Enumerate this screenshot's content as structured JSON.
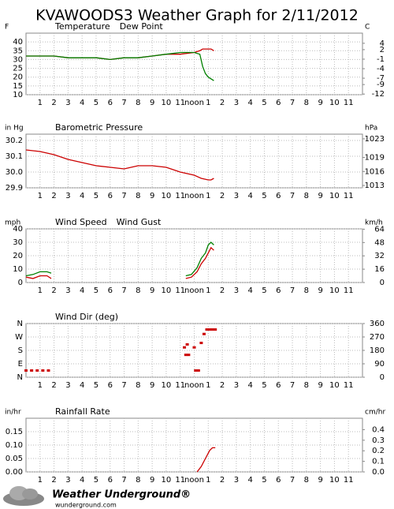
{
  "title": "KVAWOODS3 Weather Graph for 2/11/2012",
  "footer": {
    "brand": "Weather Underground®",
    "url": "wunderground.com"
  },
  "chart_data": [
    {
      "type": "line",
      "ylabel": "F",
      "y2label": "C",
      "x": [
        0,
        1,
        2,
        3,
        4,
        5,
        6,
        7,
        8,
        9,
        10,
        11,
        12,
        12.4,
        12.6,
        12.8,
        13,
        13.2,
        13.4
      ],
      "xlim": [
        0,
        24
      ],
      "xticks": [
        1,
        2,
        3,
        4,
        5,
        6,
        7,
        8,
        9,
        10,
        11,
        {
          "value": 12,
          "label": "noon"
        },
        {
          "value": 13,
          "label": "1"
        },
        {
          "value": 14,
          "label": "2"
        },
        {
          "value": 15,
          "label": "3"
        },
        {
          "value": 16,
          "label": "4"
        },
        {
          "value": 17,
          "label": "5"
        },
        {
          "value": 18,
          "label": "6"
        },
        {
          "value": 19,
          "label": "7"
        },
        {
          "value": 20,
          "label": "8"
        },
        {
          "value": 21,
          "label": "9"
        },
        {
          "value": 22,
          "label": "10"
        },
        {
          "value": 23,
          "label": "11"
        }
      ],
      "ylim": [
        10,
        45
      ],
      "yticks": [
        10,
        15,
        20,
        25,
        30,
        35,
        40
      ],
      "y2lim": [
        -12.2,
        7.2
      ],
      "y2ticks": [
        -12,
        -9,
        -7,
        -4,
        -1,
        2,
        4
      ],
      "series": [
        {
          "name": "Temperature",
          "color": "#cc0000",
          "values": [
            32,
            32,
            32,
            31,
            31,
            31,
            30,
            31,
            31,
            32,
            33,
            33,
            34,
            35,
            36,
            36,
            36,
            36,
            35
          ]
        },
        {
          "name": "Dew Point",
          "color": "#008000",
          "values": [
            32,
            32,
            32,
            31,
            31,
            31,
            30,
            31,
            31,
            32,
            33,
            34,
            34,
            33,
            26,
            22,
            20,
            19,
            18
          ]
        }
      ]
    },
    {
      "type": "line",
      "ylabel": "in Hg",
      "y2label": "hPa",
      "x": [
        0,
        1,
        2,
        3,
        4,
        5,
        6,
        7,
        8,
        9,
        10,
        11,
        12,
        12.5,
        13,
        13.2,
        13.4
      ],
      "xlim": [
        0,
        24
      ],
      "xticks": [
        1,
        2,
        3,
        4,
        5,
        6,
        7,
        8,
        9,
        10,
        11,
        {
          "value": 12,
          "label": "noon"
        },
        {
          "value": 13,
          "label": "1"
        },
        {
          "value": 14,
          "label": "2"
        },
        {
          "value": 15,
          "label": "3"
        },
        {
          "value": 16,
          "label": "4"
        },
        {
          "value": 17,
          "label": "5"
        },
        {
          "value": 18,
          "label": "6"
        },
        {
          "value": 19,
          "label": "7"
        },
        {
          "value": 20,
          "label": "8"
        },
        {
          "value": 21,
          "label": "9"
        },
        {
          "value": 22,
          "label": "10"
        },
        {
          "value": 23,
          "label": "11"
        }
      ],
      "ylim": [
        29.9,
        30.24
      ],
      "yticks": [
        29.9,
        {
          "value": 30,
          "label": "30.0"
        },
        30.1,
        30.2
      ],
      "y2lim": [
        1012.5,
        1024
      ],
      "y2ticks": [
        1013,
        1016,
        1019,
        1023
      ],
      "series": [
        {
          "name": "Barometric Pressure",
          "color": "#cc0000",
          "values": [
            30.14,
            30.13,
            30.11,
            30.08,
            30.06,
            30.04,
            30.03,
            30.02,
            30.04,
            30.04,
            30.03,
            30.0,
            29.98,
            29.96,
            29.95,
            29.95,
            29.96
          ]
        }
      ]
    },
    {
      "type": "line",
      "ylabel": "mph",
      "y2label": "km/h",
      "x": [
        0,
        0.5,
        1,
        1.5,
        1.8,
        6,
        11.4,
        11.8,
        12.2,
        12.5,
        12.8,
        13.0,
        13.2,
        13.4
      ],
      "xlim": [
        0,
        24
      ],
      "xticks": [
        1,
        2,
        3,
        4,
        5,
        6,
        7,
        8,
        9,
        10,
        11,
        {
          "value": 12,
          "label": "noon"
        },
        {
          "value": 13,
          "label": "1"
        },
        {
          "value": 14,
          "label": "2"
        },
        {
          "value": 15,
          "label": "3"
        },
        {
          "value": 16,
          "label": "4"
        },
        {
          "value": 17,
          "label": "5"
        },
        {
          "value": 18,
          "label": "6"
        },
        {
          "value": 19,
          "label": "7"
        },
        {
          "value": 20,
          "label": "8"
        },
        {
          "value": 21,
          "label": "9"
        },
        {
          "value": 22,
          "label": "10"
        },
        {
          "value": 23,
          "label": "11"
        }
      ],
      "ylim": [
        0,
        40
      ],
      "yticks": [
        0,
        10,
        20,
        30,
        40
      ],
      "y2lim": [
        0,
        64.4
      ],
      "y2ticks": [
        0,
        16,
        32,
        48,
        64
      ],
      "series": [
        {
          "name": "Wind Speed",
          "color": "#cc0000",
          "values": [
            4,
            3,
            5,
            5,
            3,
            null,
            3,
            4,
            8,
            14,
            18,
            22,
            26,
            24
          ]
        },
        {
          "name": "Wind Gust",
          "color": "#008000",
          "values": [
            5,
            6,
            8,
            8,
            7,
            null,
            5,
            6,
            11,
            18,
            22,
            28,
            30,
            28
          ]
        }
      ]
    },
    {
      "type": "scatter",
      "x": [
        0,
        0.4,
        0.8,
        1.2,
        1.6,
        11.3,
        11.4,
        11.5,
        11.6,
        12.0,
        12.1,
        12.3,
        12.5,
        12.7,
        12.9,
        13.1,
        13.3,
        13.5
      ],
      "xlim": [
        0,
        24
      ],
      "xticks": [
        1,
        2,
        3,
        4,
        5,
        6,
        7,
        8,
        9,
        10,
        11,
        {
          "value": 12,
          "label": "noon"
        },
        {
          "value": 13,
          "label": "1"
        },
        {
          "value": 14,
          "label": "2"
        },
        {
          "value": 15,
          "label": "3"
        },
        {
          "value": 16,
          "label": "4"
        },
        {
          "value": 17,
          "label": "5"
        },
        {
          "value": 18,
          "label": "6"
        },
        {
          "value": 19,
          "label": "7"
        },
        {
          "value": 20,
          "label": "8"
        },
        {
          "value": 21,
          "label": "9"
        },
        {
          "value": 22,
          "label": "10"
        },
        {
          "value": 23,
          "label": "11"
        }
      ],
      "ylim": [
        0,
        360
      ],
      "yticks": [
        {
          "value": 0,
          "label": "N"
        },
        {
          "value": 90,
          "label": "E"
        },
        {
          "value": 180,
          "label": "S"
        },
        {
          "value": 270,
          "label": "W"
        },
        {
          "value": 360,
          "label": "N"
        }
      ],
      "y2lim": [
        0,
        360
      ],
      "y2ticks": [
        0,
        90,
        180,
        270,
        360
      ],
      "series": [
        {
          "name": "Wind Dir (deg)",
          "color": "#cc0000",
          "values": [
            45,
            45,
            45,
            45,
            45,
            200,
            150,
            220,
            150,
            200,
            45,
            45,
            230,
            290,
            320,
            320,
            320,
            320
          ]
        }
      ]
    },
    {
      "type": "line",
      "ylabel": "in/hr",
      "y2label": "cm/hr",
      "x": [
        12.2,
        12.5,
        12.8,
        13.1,
        13.3,
        13.5
      ],
      "xlim": [
        0,
        24
      ],
      "xticks": [
        1,
        2,
        3,
        4,
        5,
        6,
        7,
        8,
        9,
        10,
        11,
        {
          "value": 12,
          "label": "noon"
        },
        {
          "value": 13,
          "label": "1"
        },
        {
          "value": 14,
          "label": "2"
        },
        {
          "value": 15,
          "label": "3"
        },
        {
          "value": 16,
          "label": "4"
        },
        {
          "value": 17,
          "label": "5"
        },
        {
          "value": 18,
          "label": "6"
        },
        {
          "value": 19,
          "label": "7"
        },
        {
          "value": 20,
          "label": "8"
        },
        {
          "value": 21,
          "label": "9"
        },
        {
          "value": 22,
          "label": "10"
        },
        {
          "value": 23,
          "label": "11"
        }
      ],
      "ylim": [
        0,
        0.2
      ],
      "yticks": [
        {
          "value": 0,
          "label": "0.00"
        },
        0.05,
        {
          "value": 0.1,
          "label": "0.10"
        },
        0.15
      ],
      "y2lim": [
        0,
        0.508
      ],
      "y2ticks": [
        {
          "value": 0,
          "label": "0.0"
        },
        0.1,
        0.2,
        0.3,
        0.4
      ],
      "series": [
        {
          "name": "Rainfall Rate",
          "color": "#cc0000",
          "values": [
            0,
            0.02,
            0.05,
            0.08,
            0.09,
            0.09
          ]
        }
      ]
    }
  ]
}
